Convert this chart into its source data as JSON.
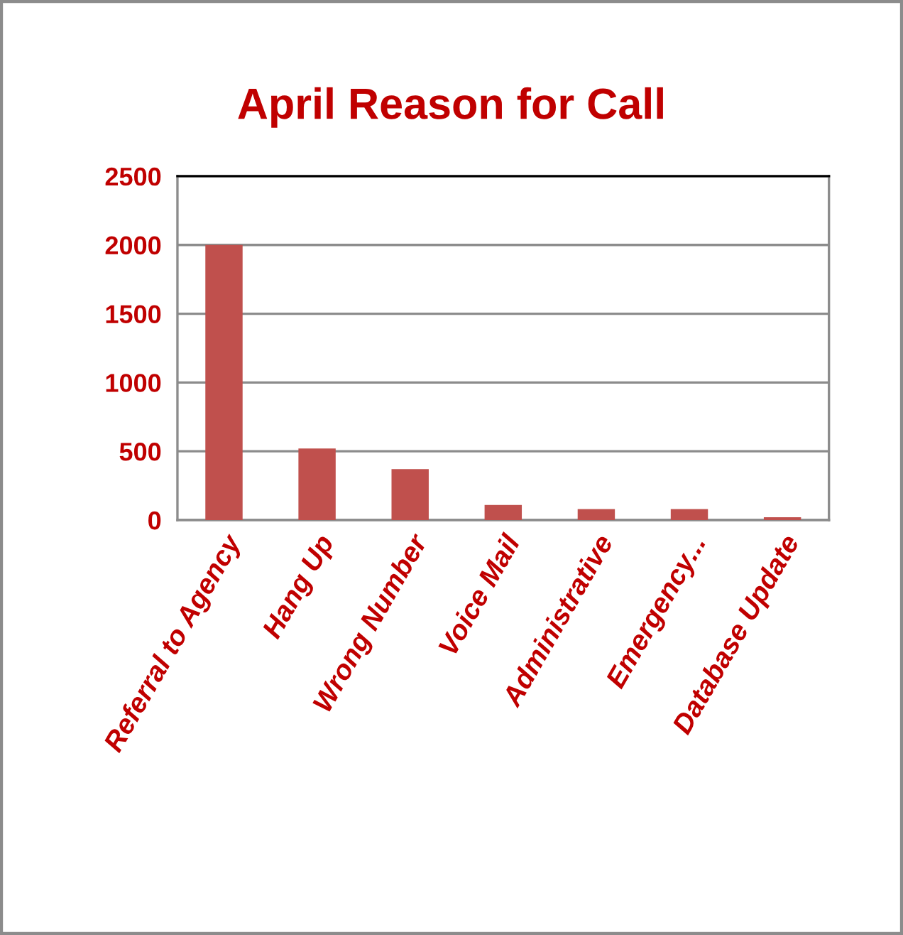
{
  "chart_data": {
    "type": "bar",
    "title": "April Reason for Call",
    "categories": [
      "Referral to Agency",
      "Hang Up",
      "Wrong Number",
      "Voice Mail",
      "Administrative",
      "Emergency...",
      "Database Update"
    ],
    "values": [
      2000,
      520,
      370,
      110,
      80,
      80,
      20
    ],
    "color": "#c0504d",
    "ylim": [
      0,
      2500
    ],
    "yticks": [
      0,
      500,
      1000,
      1500,
      2000,
      2500
    ],
    "grid": "y"
  }
}
